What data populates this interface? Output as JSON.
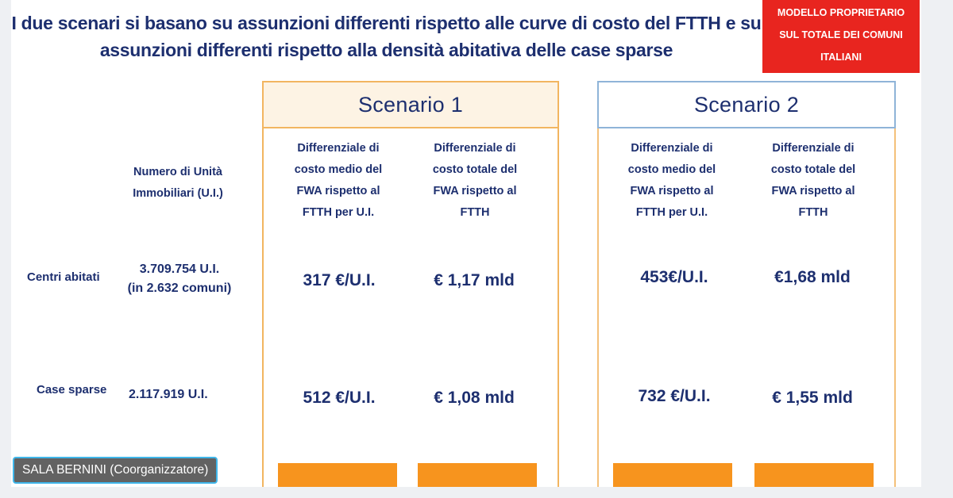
{
  "slide": {
    "title_line1": "I due scenari si basano su assunzioni differenti rispetto alle curve di costo del FTTH e su",
    "title_line2": "assunzioni differenti rispetto alla densità abitativa delle case sparse",
    "badge_line1": "Modello proprietario",
    "badge_line2": "sul totale dei comuni",
    "badge_line3": "italiani",
    "units_header_line1": "Numero di Unità",
    "units_header_line2": "Immobiliari (U.I.)",
    "rows": [
      {
        "label": "Centri abitati",
        "units_line1": "3.709.754 U.I.",
        "units_line2": "(in 2.632 comuni)"
      },
      {
        "label": "Case sparse",
        "units_line1": "2.117.919 U.I.",
        "units_line2": ""
      }
    ],
    "col_avg": {
      "l1": "Differenziale di",
      "l2": "costo medio del",
      "l3": "FWA rispetto al",
      "l4": "FTTH per U.I."
    },
    "col_total": {
      "l1": "Differenziale di",
      "l2": "costo totale del",
      "l3": "FWA rispetto al",
      "l4": "FTTH"
    },
    "scenarios": [
      {
        "name": "Scenario 1",
        "avg_centri": "317 €/U.I.",
        "total_centri": "€ 1,17 mld",
        "avg_sparse": "512 €/U.I.",
        "total_sparse": "€ 1,08 mld"
      },
      {
        "name": "Scenario 2",
        "avg_centri": "453€/U.I.",
        "total_centri": "€1,68 mld",
        "avg_sparse": "732 €/U.I.",
        "total_sparse": "€ 1,55 mld"
      }
    ],
    "accent_orange": "#f7941e",
    "badge_red": "#e8251f",
    "text_navy": "#1d2f6f"
  },
  "overlay": {
    "participant_name": "SALA BERNINI (Coorganizzatore)"
  }
}
